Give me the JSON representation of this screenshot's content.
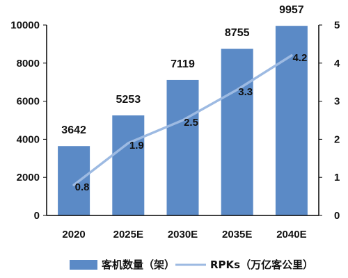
{
  "chart_data": {
    "type": "bar",
    "categories": [
      "2020",
      "2025E",
      "2030E",
      "2035E",
      "2040E"
    ],
    "series": [
      {
        "name": "客机数量（架）",
        "type": "bar",
        "axis": "left",
        "values": [
          3642,
          5253,
          7119,
          8755,
          9957
        ],
        "color": "#5B8AC6"
      },
      {
        "name": "RPKs（万亿客公里）",
        "type": "line",
        "axis": "right",
        "values": [
          0.8,
          1.9,
          2.5,
          3.3,
          4.2
        ],
        "color": "#9DBAE2"
      }
    ],
    "y_left": {
      "min": 0,
      "max": 10000,
      "ticks": [
        "0",
        "2000",
        "4000",
        "6000",
        "8000",
        "10000"
      ]
    },
    "y_right": {
      "min": 0,
      "max": 5,
      "ticks": [
        "0",
        "1",
        "2",
        "3",
        "4",
        "5"
      ]
    },
    "legend_position": "bottom",
    "grid": false
  }
}
